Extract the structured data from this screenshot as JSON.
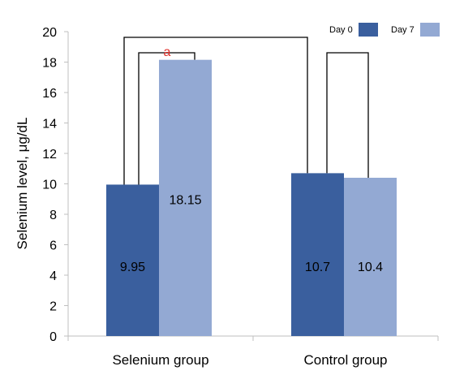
{
  "chart_data": {
    "type": "bar",
    "categories": [
      "Selenium group",
      "Control group"
    ],
    "series": [
      {
        "name": "Day 0",
        "values": [
          9.95,
          10.7
        ],
        "color": "#3a5f9e"
      },
      {
        "name": "Day 7",
        "values": [
          18.15,
          10.4
        ],
        "color": "#93a9d3"
      }
    ],
    "data_labels": [
      [
        "9.95",
        "18.15"
      ],
      [
        "10.7",
        "10.4"
      ]
    ],
    "ylabel": "Selenium level, μg/dL",
    "xlabel": "",
    "ylim": [
      0,
      20
    ],
    "yticks": [
      0,
      2,
      4,
      6,
      8,
      10,
      12,
      14,
      16,
      18,
      20
    ],
    "grid": false,
    "legend": "top-right",
    "annotations": [
      {
        "text": "a",
        "color": "#e0302a"
      }
    ],
    "axis_color": "#bfbfbf"
  }
}
